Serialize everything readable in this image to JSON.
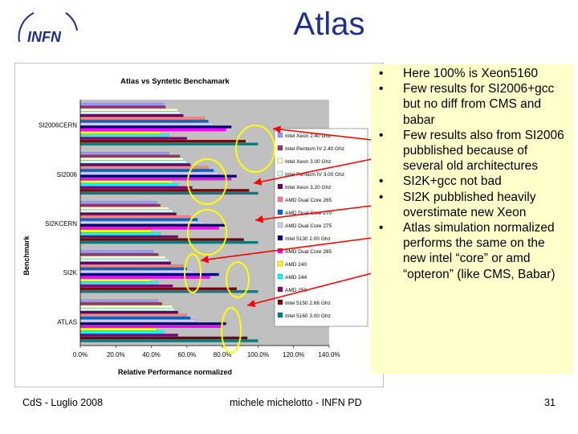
{
  "slide": {
    "title": "Atlas",
    "logo_text": "INFN"
  },
  "bullets": [
    "Here 100% is Xeon5160",
    "Few results for SI2006+gcc but no diff from CMS and babar",
    "Few results also from SI2006 pubblished because of several old architectures",
    "SI2K+gcc not bad",
    "SI2K pubblished heavily overstimate new Xeon",
    "Atlas simulation normalized performs the same on the new intel “core” or amd “opteron” (like CMS, Babar)"
  ],
  "bullet_marker": "•",
  "footer": {
    "left": "CdS - Luglio 2008",
    "center": "michele michelotto - INFN PD",
    "page": "31"
  },
  "chart_data": {
    "type": "bar",
    "orientation": "horizontal",
    "title": "Atlas vs Syntetic Benchamark",
    "xlabel": "Relative Performance normalized",
    "ylabel": "Benchmark",
    "xlim": [
      0,
      1.4
    ],
    "x_tick_labels": [
      "0.0%",
      "20.0%",
      "40.0%",
      "60.0%",
      "80.0%",
      "100.0%",
      "120.0%",
      "140.0%"
    ],
    "categories": [
      "SI2006CERN",
      "SI2006",
      "SI2KCERN",
      "SI2K",
      "ATLAS"
    ],
    "grid": false,
    "legend_position": "right",
    "series": [
      {
        "name": "Intel Xeon 2.40 Ghz",
        "color": "#9999ff",
        "values": [
          0.47,
          0.5,
          0.43,
          0.41,
          0.44
        ]
      },
      {
        "name": "Intel Pentium IV 2.40 Ghz",
        "color": "#993366",
        "values": [
          0.48,
          0.56,
          0.45,
          0.44,
          0.46
        ]
      },
      {
        "name": "Intel Xeon 3.00 Ghz",
        "color": "#ffffcc",
        "values": [
          0.55,
          0.58,
          0.5,
          0.48,
          0.52
        ]
      },
      {
        "name": "Intel Pentium IV 3.00 Ghz",
        "color": "#ccffff",
        "values": [
          0.56,
          0.6,
          0.52,
          0.5,
          0.53
        ]
      },
      {
        "name": "Intel Xeon 3.20 Ghz",
        "color": "#660066",
        "values": [
          0.58,
          0.62,
          0.54,
          0.51,
          0.55
        ]
      },
      {
        "name": "AMD Dual Core 265",
        "color": "#ff8080",
        "values": [
          0.7,
          0.72,
          0.62,
          0.58,
          0.6
        ]
      },
      {
        "name": "AMD Dual Core 270",
        "color": "#0066cc",
        "values": [
          0.72,
          0.75,
          0.66,
          0.6,
          0.62
        ]
      },
      {
        "name": "AMD Dual Core 275",
        "color": "#ccccff",
        "values": [
          0.75,
          0.78,
          0.7,
          0.64,
          0.65
        ]
      },
      {
        "name": "Intel 5130 2.00 Ghz",
        "color": "#000080",
        "values": [
          0.85,
          0.88,
          0.82,
          0.78,
          0.82
        ]
      },
      {
        "name": "AMD Dual Core 285",
        "color": "#ff00ff",
        "values": [
          0.82,
          0.85,
          0.78,
          0.73,
          0.8
        ]
      },
      {
        "name": "AMD 240",
        "color": "#ffff00",
        "values": [
          0.45,
          0.52,
          0.4,
          0.4,
          0.43
        ]
      },
      {
        "name": "AMD 244",
        "color": "#00ffff",
        "values": [
          0.5,
          0.55,
          0.45,
          0.44,
          0.47
        ]
      },
      {
        "name": "AMD 250",
        "color": "#800080",
        "values": [
          0.6,
          0.63,
          0.55,
          0.52,
          0.55
        ]
      },
      {
        "name": "Intel 5150 2.66 Ghz",
        "color": "#800000",
        "values": [
          0.93,
          0.95,
          0.92,
          0.88,
          0.94
        ]
      },
      {
        "name": "Intel 5160 3.00 Ghz",
        "color": "#008080",
        "values": [
          1.0,
          1.0,
          1.0,
          1.0,
          1.0
        ]
      }
    ],
    "plot_area_color": "#c0c0c0"
  }
}
